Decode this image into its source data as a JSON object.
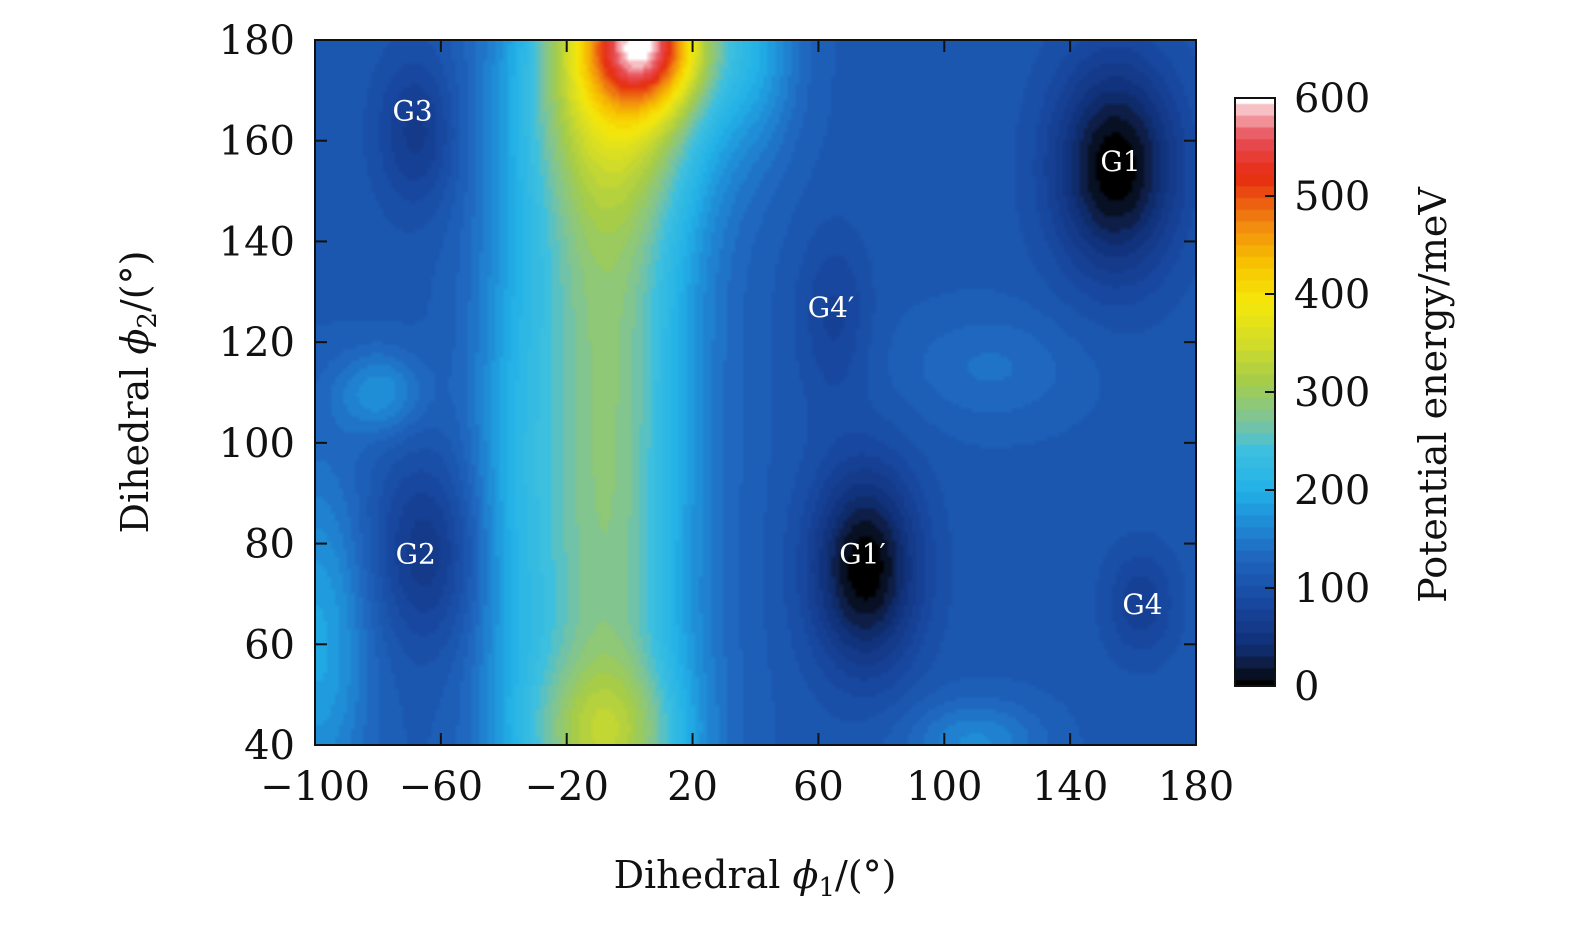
{
  "chart_data": {
    "type": "heatmap",
    "title": "",
    "xlabel": {
      "prefix": "Dihedral ",
      "symbol": "ϕ",
      "sub": "1",
      "suffix": "/(°)"
    },
    "ylabel": {
      "prefix": "Dihedral ",
      "symbol": "ϕ",
      "sub": "2",
      "suffix": "/(°)"
    },
    "xlim": [
      -100,
      180
    ],
    "ylim": [
      40,
      180
    ],
    "xticks": [
      -100,
      -60,
      -20,
      20,
      60,
      100,
      140,
      180
    ],
    "xtick_labels": [
      "−100",
      "−60",
      "−20",
      "20",
      "60",
      "100",
      "140",
      "180"
    ],
    "yticks": [
      40,
      60,
      80,
      100,
      120,
      140,
      160,
      180
    ],
    "ytick_labels": [
      "40",
      "60",
      "80",
      "100",
      "120",
      "140",
      "160",
      "180"
    ],
    "colorbar": {
      "label": "Potential energy/meV",
      "range": [
        0,
        600
      ],
      "ticks": [
        0,
        100,
        200,
        300,
        400,
        500,
        600
      ],
      "tick_labels": [
        "0",
        "100",
        "200",
        "300",
        "400",
        "500",
        "600"
      ],
      "colormap": [
        [
          0,
          "#000000"
        ],
        [
          20,
          "#0d1a3c"
        ],
        [
          40,
          "#102f75"
        ],
        [
          80,
          "#17449c"
        ],
        [
          130,
          "#1f65be"
        ],
        [
          170,
          "#1f90d8"
        ],
        [
          200,
          "#22b2e8"
        ],
        [
          240,
          "#3dbfe0"
        ],
        [
          270,
          "#7dc49a"
        ],
        [
          310,
          "#a5cc4a"
        ],
        [
          350,
          "#d2dc28"
        ],
        [
          390,
          "#f5e80a"
        ],
        [
          430,
          "#f7c400"
        ],
        [
          470,
          "#f28a10"
        ],
        [
          520,
          "#e52a10"
        ],
        [
          560,
          "#e8505a"
        ],
        [
          590,
          "#f8c8cc"
        ],
        [
          600,
          "#ffffff"
        ]
      ]
    },
    "energy_field": {
      "background_meV": 110,
      "features": [
        {
          "name": "G1 well",
          "x": 155,
          "y": 155,
          "sx": 14,
          "sy": 15,
          "amplitude_meV": -115
        },
        {
          "name": "G1' well",
          "x": 75,
          "y": 75,
          "sx": 12,
          "sy": 14,
          "amplitude_meV": -115
        },
        {
          "name": "G2 well",
          "x": -65,
          "y": 78,
          "sx": 12,
          "sy": 13,
          "amplitude_meV": -55
        },
        {
          "name": "G3 well",
          "x": -68,
          "y": 162,
          "sx": 9,
          "sy": 11,
          "amplitude_meV": -50
        },
        {
          "name": "G4 well",
          "x": 163,
          "y": 68,
          "sx": 8,
          "sy": 8,
          "amplitude_meV": -40
        },
        {
          "name": "G4' well",
          "x": 65,
          "y": 125,
          "sx": 8,
          "sy": 12,
          "amplitude_meV": -35
        },
        {
          "name": "central ridge",
          "x": -8,
          "y": 110,
          "sx": 20,
          "sy": 140,
          "amplitude_meV": 175
        },
        {
          "name": "ridge left flank",
          "x": -38,
          "y": 90,
          "sx": 10,
          "sy": 45,
          "amplitude_meV": 40
        },
        {
          "name": "top peak",
          "x": 5,
          "y": 180,
          "sx": 13,
          "sy": 9,
          "amplitude_meV": 270
        },
        {
          "name": "top yellow",
          "x": 0,
          "y": 172,
          "sx": 22,
          "sy": 18,
          "amplitude_meV": 110
        },
        {
          "name": "bottom yellow",
          "x": -8,
          "y": 42,
          "sx": 18,
          "sy": 10,
          "amplitude_meV": 70
        },
        {
          "name": "left cyan",
          "x": -100,
          "y": 60,
          "sx": 12,
          "sy": 25,
          "amplitude_meV": 80
        },
        {
          "name": "left cyan 2",
          "x": -80,
          "y": 110,
          "sx": 10,
          "sy": 6,
          "amplitude_meV": 60
        },
        {
          "name": "bottom cyan",
          "x": 110,
          "y": 40,
          "sx": 15,
          "sy": 6,
          "amplitude_meV": 55
        },
        {
          "name": "top cyan",
          "x": 40,
          "y": 180,
          "sx": 10,
          "sy": 15,
          "amplitude_meV": 60
        },
        {
          "name": "right blob",
          "x": 115,
          "y": 115,
          "sx": 20,
          "sy": 8,
          "amplitude_meV": 30
        }
      ]
    },
    "annotations": [
      {
        "text": "G1",
        "x": 156,
        "y": 156
      },
      {
        "text": "G1′",
        "x": 74,
        "y": 78
      },
      {
        "text": "G2",
        "x": -68,
        "y": 78
      },
      {
        "text": "G3",
        "x": -69,
        "y": 166
      },
      {
        "text": "G4",
        "x": 163,
        "y": 68
      },
      {
        "text": "G4′",
        "x": 64,
        "y": 127
      }
    ]
  }
}
